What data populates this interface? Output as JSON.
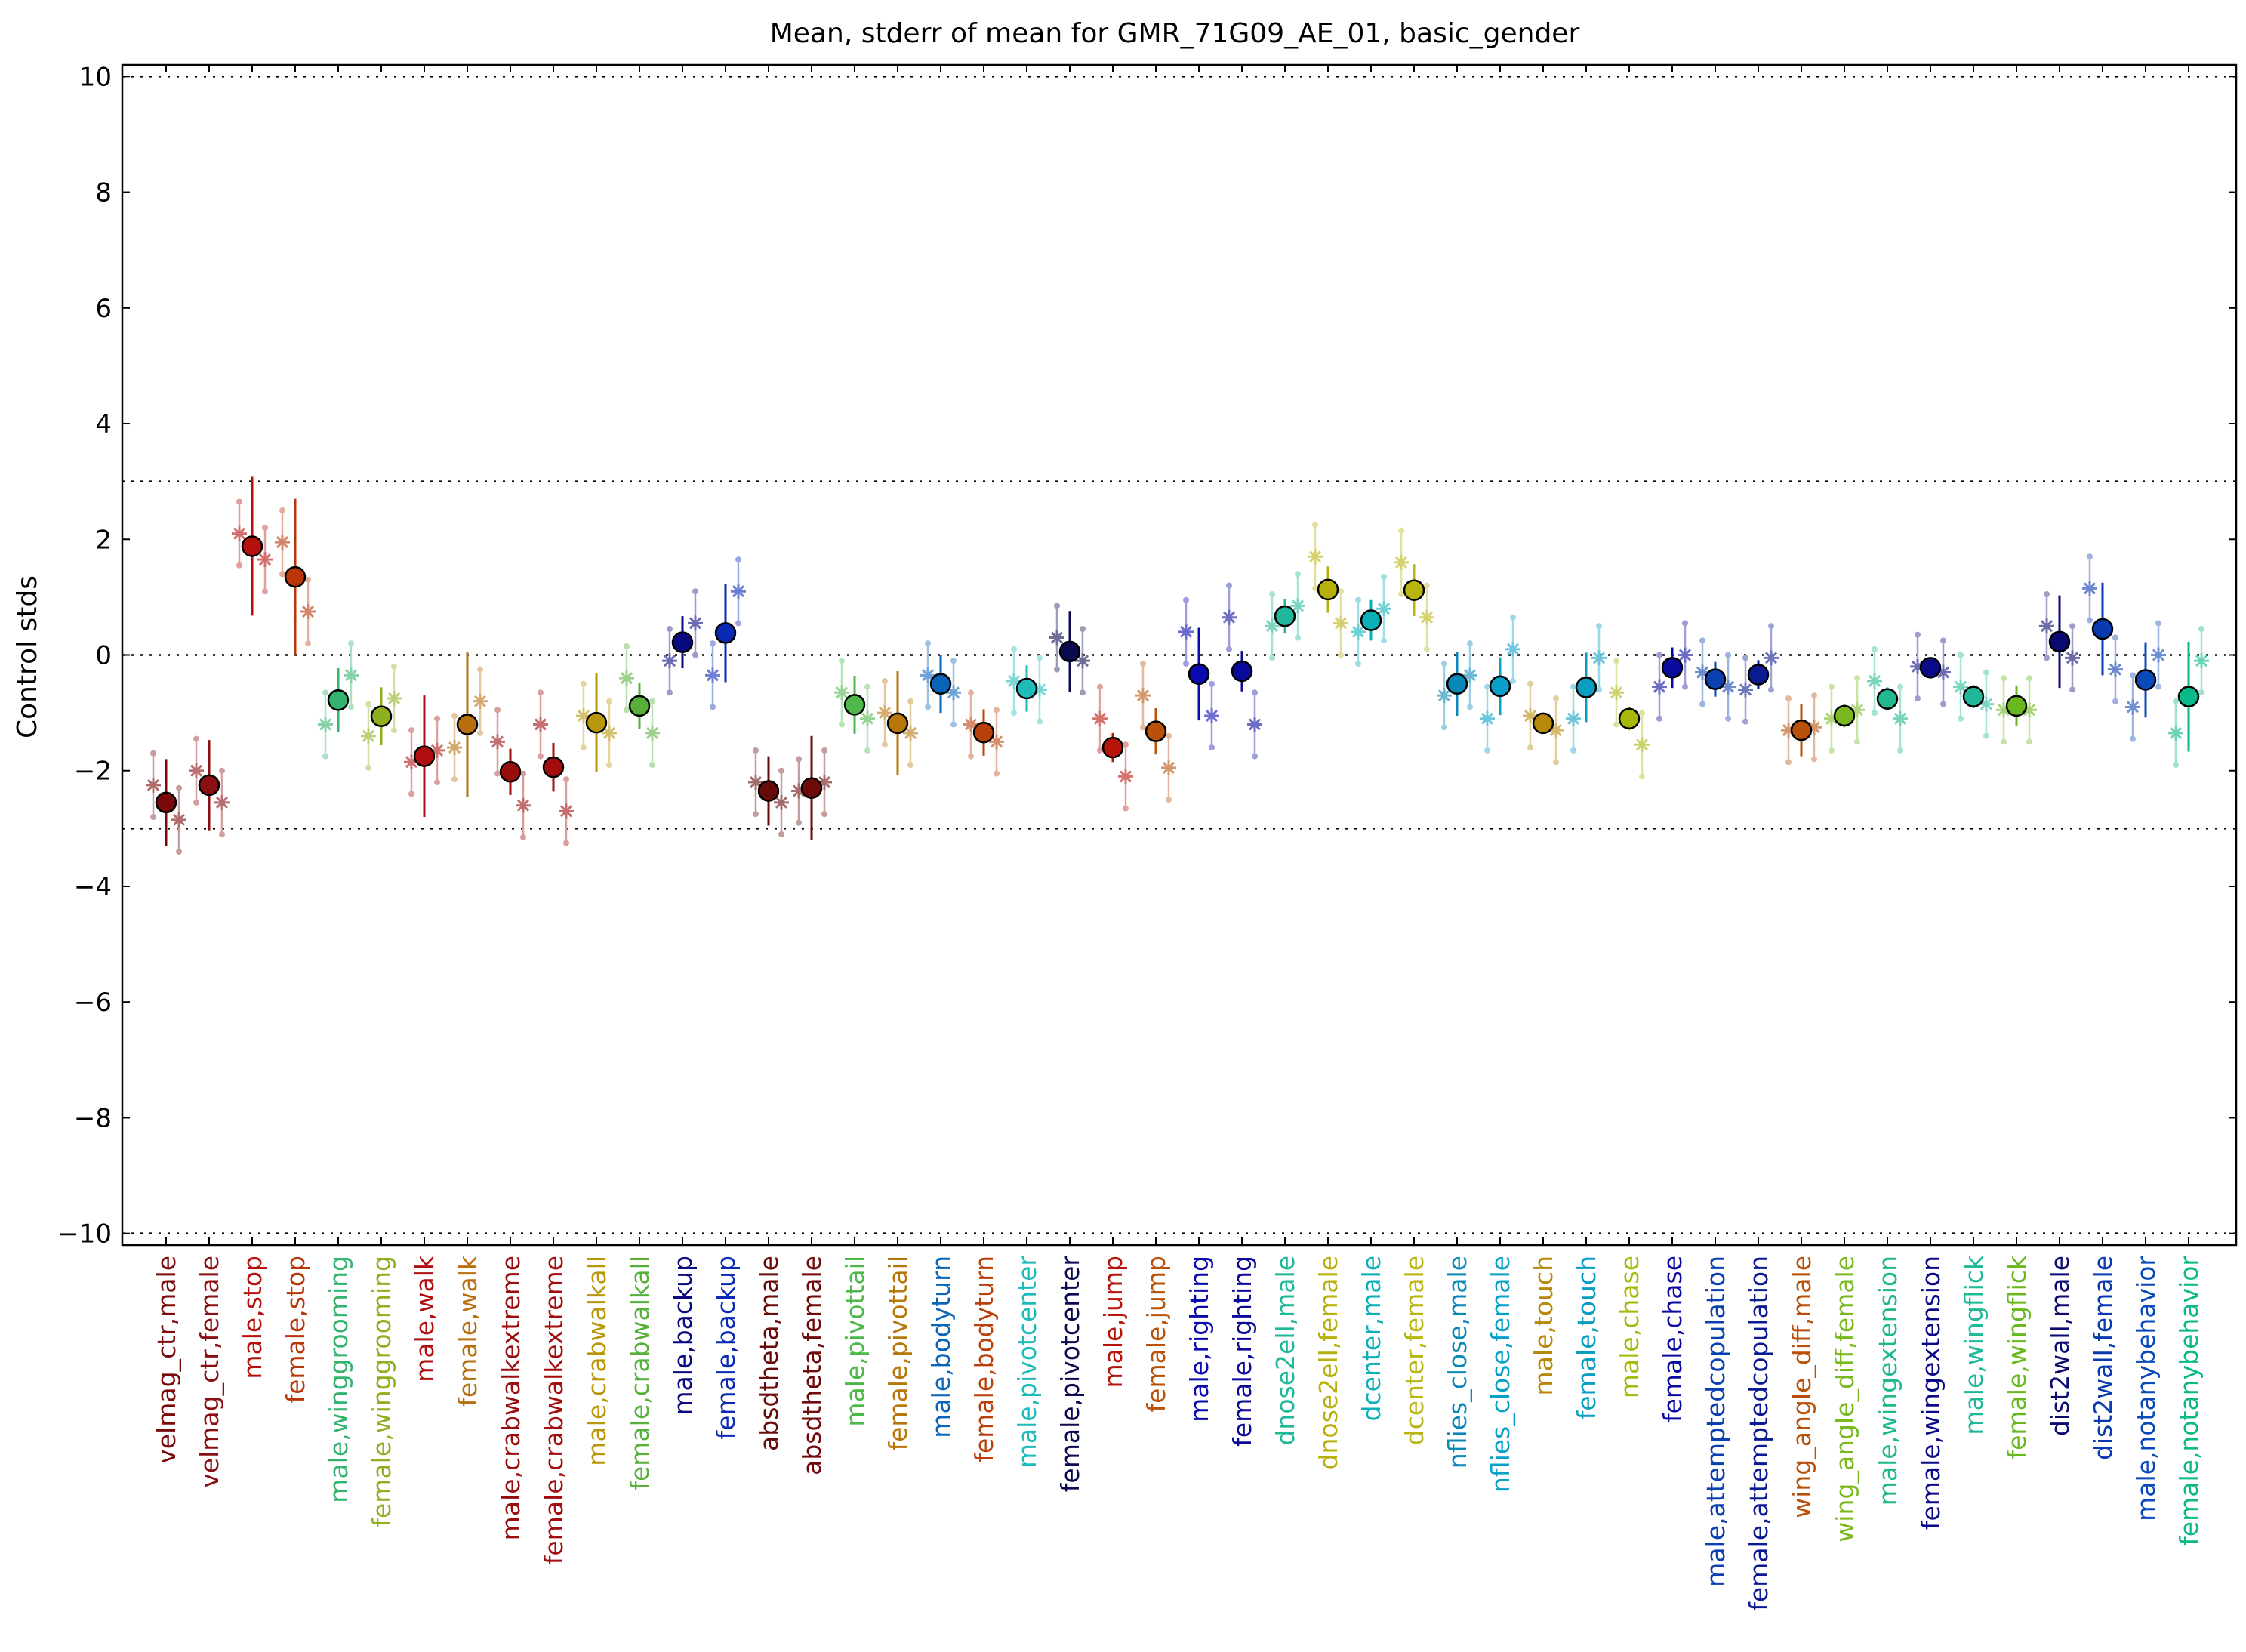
{
  "chart_data": {
    "type": "scatter",
    "title": "Mean, stderr of mean for GMR_71G09_AE_01, basic_gender",
    "xlabel": "",
    "ylabel": "Control stds",
    "ylim": [
      -10.2,
      10.2
    ],
    "yticks": [
      10,
      8,
      6,
      4,
      2,
      0,
      -2,
      -4,
      -6,
      -8,
      -10
    ],
    "ytick_labels": [
      "10",
      "8",
      "6",
      "4",
      "2",
      "0",
      "−2",
      "−4",
      "−6",
      "−8",
      "−10"
    ],
    "reference_lines": [
      10,
      3,
      0,
      -3,
      -10
    ],
    "grid": false,
    "legend": "none",
    "categories": [
      "velmag_ctr,male",
      "velmag_ctr,female",
      "male,stop",
      "female,stop",
      "male,winggrooming",
      "female,winggrooming",
      "male,walk",
      "female,walk",
      "male,crabwalkextreme",
      "female,crabwalkextreme",
      "male,crabwalkall",
      "female,crabwalkall",
      "male,backup",
      "female,backup",
      "absdtheta,male",
      "absdtheta,female",
      "male,pivottail",
      "female,pivottail",
      "male,bodyturn",
      "female,bodyturn",
      "male,pivotcenter",
      "female,pivotcenter",
      "male,jump",
      "female,jump",
      "male,righting",
      "female,righting",
      "dnose2ell,male",
      "dnose2ell,female",
      "dcenter,male",
      "dcenter,female",
      "nflies_close,male",
      "nflies_close,female",
      "male,touch",
      "female,touch",
      "male,chase",
      "female,chase",
      "male,attemptedcopulation",
      "female,attemptedcopulation",
      "wing_angle_diff,male",
      "wing_angle_diff,female",
      "male,wingextension",
      "female,wingextension",
      "male,wingflick",
      "female,wingflick",
      "dist2wall,male",
      "dist2wall,female",
      "male,notanybehavior",
      "female,notanybehavior"
    ],
    "colors": [
      "#7a0a0a",
      "#8a0f12",
      "#b80f0f",
      "#b8360a",
      "#33b36e",
      "#8eb01f",
      "#b00f0f",
      "#b86f0f",
      "#9a0d0d",
      "#a30d0d",
      "#b8970a",
      "#57b03a",
      "#0a0a80",
      "#0a29b5",
      "#660a0a",
      "#6e0a0a",
      "#4eb84a",
      "#b8770a",
      "#0a64b8",
      "#b8400a",
      "#1fbbbb",
      "#0a0a50",
      "#b8140a",
      "#b8520a",
      "#0a0ab0",
      "#0a0a9a",
      "#1fb89a",
      "#b8b00a",
      "#0ab0b8",
      "#b8b50f",
      "#0a88b8",
      "#0aa0c8",
      "#b8880a",
      "#0a9ec0",
      "#a8b80a",
      "#0a0aa0",
      "#0a40b0",
      "#0a1a90",
      "#b8500a",
      "#7ab820",
      "#1fb890",
      "#0a0a88",
      "#1fb898",
      "#6ab820",
      "#0a0a70",
      "#0a3ab0",
      "#0a4ab8",
      "#0ab888"
    ],
    "means": [
      -2.55,
      -2.25,
      1.88,
      1.35,
      -0.78,
      -1.06,
      -1.75,
      -1.2,
      -2.02,
      -1.94,
      -1.17,
      -0.88,
      0.22,
      0.38,
      -2.35,
      -2.3,
      -0.86,
      -1.18,
      -0.5,
      -1.34,
      -0.58,
      0.06,
      -1.6,
      -1.32,
      -0.33,
      -0.28,
      0.67,
      1.13,
      0.6,
      1.12,
      -0.5,
      -0.54,
      -1.18,
      -0.56,
      -1.1,
      -0.22,
      -0.42,
      -0.34,
      -1.3,
      -1.05,
      -0.76,
      -0.22,
      -0.72,
      -0.88,
      0.23,
      0.45,
      -0.43,
      -0.72
    ],
    "sem": [
      0.75,
      0.78,
      1.2,
      1.35,
      0.55,
      0.5,
      1.05,
      1.25,
      0.4,
      0.42,
      0.85,
      0.4,
      0.45,
      0.85,
      0.6,
      0.9,
      0.5,
      0.9,
      0.5,
      0.4,
      0.4,
      0.7,
      0.25,
      0.4,
      0.8,
      0.35,
      0.3,
      0.4,
      0.35,
      0.45,
      0.55,
      0.5,
      0.15,
      0.6,
      0.2,
      0.35,
      0.3,
      0.25,
      0.45,
      0.2,
      0.2,
      0.1,
      0.2,
      0.35,
      0.8,
      0.8,
      0.65,
      0.95
    ],
    "star_pairs": [
      [
        -2.25,
        -2.85
      ],
      [
        -2.0,
        -2.55
      ],
      [
        2.1,
        1.65
      ],
      [
        1.95,
        0.75
      ],
      [
        -1.2,
        -0.35
      ],
      [
        -1.4,
        -0.75
      ],
      [
        -1.85,
        -1.65
      ],
      [
        -1.6,
        -0.8
      ],
      [
        -1.5,
        -2.6
      ],
      [
        -1.2,
        -2.7
      ],
      [
        -1.05,
        -1.35
      ],
      [
        -0.4,
        -1.35
      ],
      [
        -0.1,
        0.55
      ],
      [
        -0.35,
        1.1
      ],
      [
        -2.2,
        -2.55
      ],
      [
        -2.35,
        -2.2
      ],
      [
        -0.65,
        -1.1
      ],
      [
        -1.0,
        -1.35
      ],
      [
        -0.35,
        -0.65
      ],
      [
        -1.2,
        -1.5
      ],
      [
        -0.45,
        -0.6
      ],
      [
        0.3,
        -0.1
      ],
      [
        -1.1,
        -2.1
      ],
      [
        -0.7,
        -1.95
      ],
      [
        0.4,
        -1.05
      ],
      [
        0.65,
        -1.2
      ],
      [
        0.5,
        0.85
      ],
      [
        1.7,
        0.55
      ],
      [
        0.4,
        0.8
      ],
      [
        1.6,
        0.65
      ],
      [
        -0.7,
        -0.35
      ],
      [
        -1.1,
        0.1
      ],
      [
        -1.05,
        -1.3
      ],
      [
        -1.1,
        -0.05
      ],
      [
        -0.65,
        -1.55
      ],
      [
        -0.55,
        0.0
      ],
      [
        -0.3,
        -0.55
      ],
      [
        -0.6,
        -0.05
      ],
      [
        -1.3,
        -1.25
      ],
      [
        -1.1,
        -0.95
      ],
      [
        -0.45,
        -1.1
      ],
      [
        -0.2,
        -0.3
      ],
      [
        -0.55,
        -0.85
      ],
      [
        -0.95,
        -0.95
      ],
      [
        0.5,
        -0.05
      ],
      [
        1.15,
        -0.25
      ],
      [
        -0.9,
        0.0
      ],
      [
        -1.35,
        -0.1
      ]
    ]
  }
}
